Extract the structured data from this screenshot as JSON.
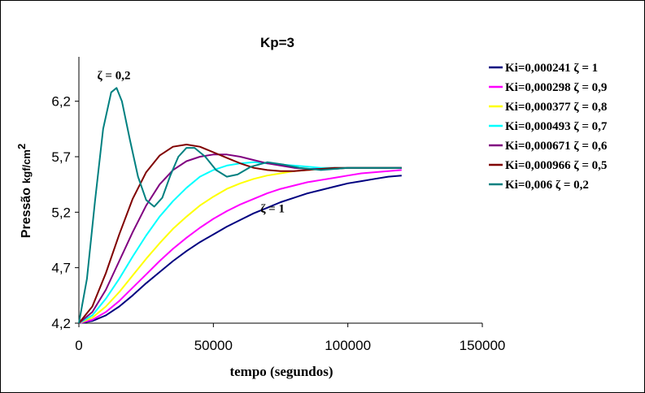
{
  "chart_data": {
    "type": "line",
    "title": "Kp=3",
    "xlabel": "tempo (segundos)",
    "ylabel": "Pressão",
    "ylabel_unit": "kgf/cm",
    "ylabel_unit_sup": "2",
    "xlim": [
      0,
      150000
    ],
    "ylim": [
      4.2,
      6.6
    ],
    "x_ticks": [
      0,
      50000,
      100000,
      150000
    ],
    "x_tick_labels": [
      "0",
      "50000",
      "100000",
      "150000"
    ],
    "y_ticks": [
      4.2,
      4.7,
      5.2,
      5.7,
      6.2
    ],
    "y_tick_labels": [
      "4,2",
      "4,7",
      "5,2",
      "5,7",
      "6,2"
    ],
    "grid": false,
    "legend_position": "right",
    "annotations": [
      {
        "text": "ζ = 0,2",
        "x": 13000,
        "y": 6.4
      },
      {
        "text": "ζ = 1",
        "x": 72000,
        "y": 5.2
      }
    ],
    "series": [
      {
        "name": "Ki=0,000241 ζ = 1",
        "color": "#000080",
        "x": [
          0,
          5000,
          10000,
          15000,
          20000,
          25000,
          30000,
          35000,
          40000,
          45000,
          50000,
          55000,
          60000,
          65000,
          70000,
          75000,
          80000,
          85000,
          90000,
          95000,
          100000,
          105000,
          110000,
          115000,
          120000
        ],
        "values": [
          4.2,
          4.22,
          4.27,
          4.35,
          4.45,
          4.56,
          4.66,
          4.76,
          4.85,
          4.93,
          5.0,
          5.07,
          5.13,
          5.19,
          5.24,
          5.29,
          5.33,
          5.37,
          5.4,
          5.43,
          5.46,
          5.48,
          5.5,
          5.52,
          5.53
        ]
      },
      {
        "name": "Ki=0,000298 ζ = 0,9",
        "color": "#ff00ff",
        "x": [
          0,
          5000,
          10000,
          15000,
          20000,
          25000,
          30000,
          35000,
          40000,
          45000,
          50000,
          55000,
          60000,
          65000,
          70000,
          75000,
          80000,
          85000,
          90000,
          95000,
          100000,
          105000,
          110000,
          115000,
          120000
        ],
        "values": [
          4.2,
          4.23,
          4.3,
          4.4,
          4.52,
          4.64,
          4.76,
          4.87,
          4.97,
          5.06,
          5.14,
          5.21,
          5.27,
          5.32,
          5.37,
          5.41,
          5.44,
          5.47,
          5.49,
          5.51,
          5.53,
          5.55,
          5.56,
          5.57,
          5.58
        ]
      },
      {
        "name": "Ki=0,000377 ζ = 0,8",
        "color": "#ffff00",
        "x": [
          0,
          5000,
          10000,
          15000,
          20000,
          25000,
          30000,
          35000,
          40000,
          45000,
          50000,
          55000,
          60000,
          65000,
          70000,
          75000,
          80000,
          85000,
          90000,
          95000,
          100000,
          105000,
          110000,
          115000,
          120000
        ],
        "values": [
          4.2,
          4.25,
          4.35,
          4.48,
          4.63,
          4.78,
          4.92,
          5.05,
          5.16,
          5.26,
          5.34,
          5.41,
          5.46,
          5.5,
          5.53,
          5.55,
          5.57,
          5.58,
          5.59,
          5.59,
          5.6,
          5.6,
          5.6,
          5.6,
          5.6
        ]
      },
      {
        "name": "Ki=0,000493 ζ = 0,7",
        "color": "#00ffff",
        "x": [
          0,
          5000,
          10000,
          15000,
          20000,
          25000,
          30000,
          35000,
          40000,
          45000,
          50000,
          55000,
          60000,
          65000,
          70000,
          75000,
          80000,
          85000,
          90000,
          95000,
          100000,
          105000,
          110000,
          115000,
          120000
        ],
        "values": [
          4.2,
          4.27,
          4.42,
          4.6,
          4.8,
          4.99,
          5.16,
          5.3,
          5.42,
          5.52,
          5.58,
          5.62,
          5.64,
          5.65,
          5.64,
          5.63,
          5.62,
          5.61,
          5.6,
          5.6,
          5.6,
          5.6,
          5.6,
          5.6,
          5.6
        ]
      },
      {
        "name": "Ki=0,000671 ζ = 0,6",
        "color": "#800080",
        "x": [
          0,
          5000,
          10000,
          15000,
          20000,
          25000,
          30000,
          35000,
          40000,
          45000,
          50000,
          55000,
          60000,
          65000,
          70000,
          75000,
          80000,
          85000,
          90000,
          95000,
          100000,
          105000,
          110000,
          115000,
          120000
        ],
        "values": [
          4.2,
          4.3,
          4.5,
          4.76,
          5.02,
          5.26,
          5.45,
          5.58,
          5.66,
          5.7,
          5.72,
          5.72,
          5.7,
          5.67,
          5.64,
          5.62,
          5.6,
          5.59,
          5.59,
          5.59,
          5.6,
          5.6,
          5.6,
          5.6,
          5.6
        ]
      },
      {
        "name": "Ki=0,000966 ζ = 0,5",
        "color": "#800000",
        "x": [
          0,
          5000,
          10000,
          15000,
          20000,
          25000,
          30000,
          35000,
          40000,
          45000,
          50000,
          55000,
          60000,
          65000,
          70000,
          75000,
          80000,
          85000,
          90000,
          95000,
          100000,
          105000,
          110000,
          115000,
          120000
        ],
        "values": [
          4.2,
          4.35,
          4.65,
          5.0,
          5.32,
          5.56,
          5.71,
          5.79,
          5.81,
          5.79,
          5.74,
          5.69,
          5.64,
          5.6,
          5.58,
          5.57,
          5.57,
          5.58,
          5.59,
          5.6,
          5.6,
          5.6,
          5.6,
          5.6,
          5.6
        ]
      },
      {
        "name": "Ki=0,006 ζ = 0,2",
        "color": "#008080",
        "x": [
          0,
          3000,
          6000,
          9000,
          12000,
          14000,
          16000,
          19000,
          22000,
          25000,
          28000,
          31000,
          34000,
          37000,
          40000,
          43000,
          47000,
          51000,
          55000,
          59000,
          64000,
          70000,
          76000,
          82000,
          90000,
          100000,
          110000,
          120000
        ],
        "values": [
          4.2,
          4.6,
          5.3,
          5.95,
          6.28,
          6.32,
          6.2,
          5.85,
          5.52,
          5.31,
          5.25,
          5.33,
          5.53,
          5.7,
          5.78,
          5.78,
          5.7,
          5.58,
          5.52,
          5.54,
          5.61,
          5.65,
          5.63,
          5.6,
          5.58,
          5.6,
          5.6,
          5.6
        ]
      }
    ]
  }
}
